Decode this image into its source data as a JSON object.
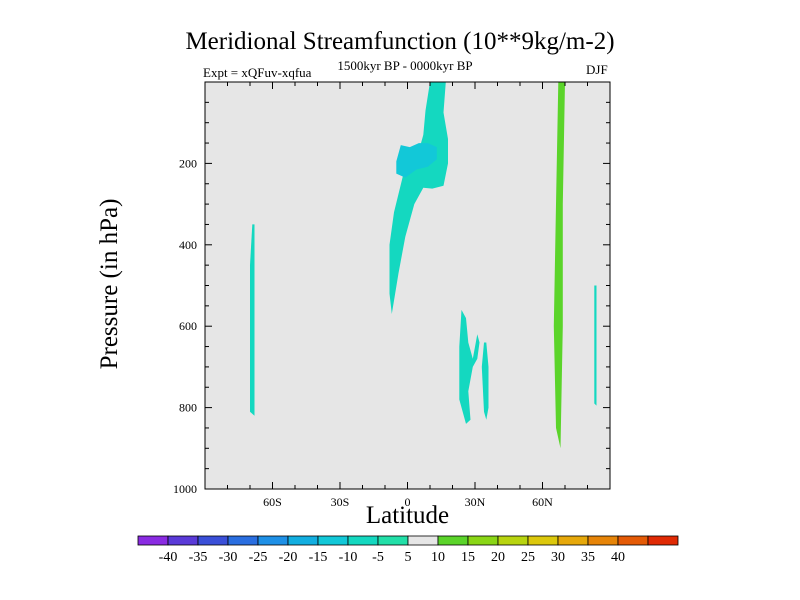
{
  "chart_data": {
    "type": "heatmap",
    "title": "Meridional Streamfunction (10**9kg/m-2)",
    "subtitle_left": "Expt = xQFuv-xqfua",
    "subtitle_center": "1500kyr BP - 0000kyr BP",
    "subtitle_right": "DJF",
    "xlabel": "Latitude",
    "ylabel": "Pressure (in hPa)",
    "xlim": [
      -90,
      90
    ],
    "ylim": [
      1000,
      0
    ],
    "x_ticks": [
      {
        "value": -60,
        "label": "60S"
      },
      {
        "value": -30,
        "label": "30S"
      },
      {
        "value": 0,
        "label": "0"
      },
      {
        "value": 30,
        "label": "30N"
      },
      {
        "value": 60,
        "label": "60N"
      }
    ],
    "y_ticks": [
      {
        "value": 200,
        "label": "200"
      },
      {
        "value": 400,
        "label": "400"
      },
      {
        "value": 600,
        "label": "600"
      },
      {
        "value": 800,
        "label": "800"
      },
      {
        "value": 1000,
        "label": "1000"
      }
    ],
    "background_color": "#e6e6e6",
    "colorbar": {
      "labels": [
        "-40",
        "-35",
        "-30",
        "-25",
        "-20",
        "-15",
        "-10",
        "-5",
        "5",
        "10",
        "15",
        "20",
        "25",
        "30",
        "35",
        "40"
      ],
      "colors": [
        "#8a2be2",
        "#5a3ad8",
        "#3a4fd8",
        "#2a6ee0",
        "#1e90e6",
        "#12aee0",
        "#12c8d8",
        "#14d8c0",
        "#22dfa8",
        "#e6e6e6",
        "#5bd42a",
        "#8ad616",
        "#b8d410",
        "#dcc80c",
        "#e6a80a",
        "#e68408",
        "#e45a06",
        "#e02a04"
      ]
    },
    "regions": [
      {
        "value": -7,
        "label": "-10 to -5",
        "polygon": [
          [
            10,
            0
          ],
          [
            8,
            70
          ],
          [
            7,
            130
          ],
          [
            4,
            190
          ],
          [
            -2,
            230
          ],
          [
            -6,
            320
          ],
          [
            -8,
            400
          ],
          [
            -8,
            520
          ],
          [
            -7,
            570
          ],
          [
            -4,
            470
          ],
          [
            -1,
            380
          ],
          [
            3,
            300
          ],
          [
            7,
            260
          ],
          [
            11,
            262
          ],
          [
            16,
            255
          ],
          [
            18,
            200
          ],
          [
            18,
            140
          ],
          [
            16,
            75
          ],
          [
            17,
            0
          ]
        ]
      },
      {
        "value": -12,
        "label": "-15 to -10",
        "polygon": [
          [
            -3,
            155
          ],
          [
            -5,
            195
          ],
          [
            -5,
            225
          ],
          [
            -1,
            235
          ],
          [
            4,
            215
          ],
          [
            9,
            208
          ],
          [
            13,
            190
          ],
          [
            13,
            160
          ],
          [
            9,
            150
          ],
          [
            5,
            150
          ],
          [
            1,
            160
          ]
        ]
      },
      {
        "value": -7,
        "label": "-10 to -5",
        "polygon": [
          [
            -69,
            350
          ],
          [
            -70,
            450
          ],
          [
            -70,
            600
          ],
          [
            -70,
            810
          ],
          [
            -68,
            820
          ],
          [
            -68,
            620
          ],
          [
            -68,
            450
          ],
          [
            -68,
            350
          ]
        ]
      },
      {
        "value": -7,
        "label": "-10 to -5",
        "polygon": [
          [
            24,
            560
          ],
          [
            23,
            650
          ],
          [
            23,
            780
          ],
          [
            26,
            840
          ],
          [
            28,
            830
          ],
          [
            27,
            760
          ],
          [
            29,
            700
          ],
          [
            31,
            680
          ],
          [
            32,
            640
          ],
          [
            31,
            620
          ],
          [
            29,
            680
          ],
          [
            27,
            640
          ],
          [
            26,
            580
          ]
        ]
      },
      {
        "value": -7,
        "label": "-10 to -5",
        "polygon": [
          [
            34,
            640
          ],
          [
            33,
            700
          ],
          [
            34,
            810
          ],
          [
            35,
            830
          ],
          [
            36,
            800
          ],
          [
            36,
            700
          ],
          [
            35,
            640
          ]
        ]
      },
      {
        "value": -7,
        "label": "-10 to -5",
        "polygon": [
          [
            83,
            500
          ],
          [
            83,
            600
          ],
          [
            83,
            790
          ],
          [
            84,
            795
          ],
          [
            84,
            600
          ],
          [
            84,
            500
          ]
        ]
      },
      {
        "value": 7,
        "label": "5 to 10",
        "polygon": [
          [
            -1,
            600
          ],
          [
            -2,
            680
          ],
          [
            -1,
            820
          ],
          [
            0,
            900
          ],
          [
            2,
            920
          ],
          [
            4,
            890
          ],
          [
            3,
            760
          ],
          [
            1,
            650
          ],
          [
            0,
            600
          ]
        ]
      },
      {
        "value": 7,
        "label": "5 to 10",
        "polygon": [
          [
            47,
            0
          ],
          [
            46,
            200
          ],
          [
            46,
            500
          ],
          [
            47,
            780
          ],
          [
            48,
            880
          ],
          [
            49,
            820
          ],
          [
            50,
            500
          ],
          [
            51,
            300
          ],
          [
            52,
            100
          ],
          [
            52,
            0
          ]
        ]
      },
      {
        "value": 7,
        "label": "5 to 10",
        "polygon": [
          [
            66,
            0
          ],
          [
            65,
            200
          ],
          [
            64,
            500
          ],
          [
            64,
            800
          ],
          [
            65,
            960
          ],
          [
            68,
            975
          ],
          [
            71,
            930
          ],
          [
            71,
            600
          ],
          [
            71,
            300
          ],
          [
            72,
            0
          ]
        ]
      },
      {
        "value": 12,
        "label": "10 to 15",
        "polygon": [
          [
            67,
            0
          ],
          [
            66,
            300
          ],
          [
            65,
            600
          ],
          [
            66,
            850
          ],
          [
            68,
            900
          ],
          [
            69,
            600
          ],
          [
            69,
            300
          ],
          [
            70,
            0
          ]
        ]
      },
      {
        "value": 7,
        "label": "5 to 10",
        "polygon": [
          [
            55,
            100
          ],
          [
            55,
            130
          ],
          [
            56,
            130
          ],
          [
            56,
            100
          ]
        ]
      },
      {
        "value": 7,
        "label": "5 to 10",
        "polygon": [
          [
            62,
            700
          ],
          [
            62,
            790
          ],
          [
            63,
            790
          ],
          [
            63,
            700
          ]
        ]
      }
    ]
  }
}
